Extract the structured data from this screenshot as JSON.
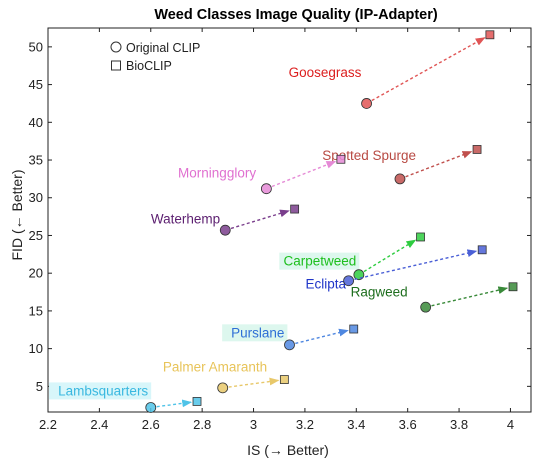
{
  "chart_data": {
    "type": "scatter",
    "title": "Weed Classes Image Quality (IP-Adapter)",
    "xlabel": "IS (→ Better)",
    "ylabel": "FID (← Better)",
    "xlim": [
      2.2,
      4.08
    ],
    "ylim": [
      1.6,
      52.5
    ],
    "x_ticks": [
      2.2,
      2.4,
      2.6,
      2.8,
      3,
      3.2,
      3.4,
      3.6,
      3.8,
      4
    ],
    "x_tick_labels": [
      "2.2",
      "2.4",
      "2.6",
      "2.8",
      "3",
      "3.2",
      "3.4",
      "3.6",
      "3.8",
      "4"
    ],
    "y_ticks": [
      5,
      10,
      15,
      20,
      25,
      30,
      35,
      40,
      45,
      50
    ],
    "y_tick_labels": [
      "5",
      "10",
      "15",
      "20",
      "25",
      "30",
      "35",
      "40",
      "45",
      "50"
    ],
    "grid": false,
    "legend": {
      "position": "top-left",
      "entries": [
        {
          "label": "Original CLIP",
          "marker": "circle"
        },
        {
          "label": "BioCLIP",
          "marker": "square"
        }
      ]
    },
    "series": [
      {
        "name": "Goosegrass",
        "color": "#e05555",
        "label_color": "#dc1e1e",
        "label_bg": "",
        "label_anchor": "end",
        "label_pos": [
          3.42,
          46.0
        ],
        "original_clip": {
          "x": 3.44,
          "y": 42.5
        },
        "bioclip": {
          "x": 3.92,
          "y": 51.6
        }
      },
      {
        "name": "Spotted Spurge",
        "color": "#c0504d",
        "label_color": "#b84a43",
        "label_bg": "",
        "label_anchor": "middle",
        "label_pos": [
          3.45,
          35.0
        ],
        "original_clip": {
          "x": 3.57,
          "y": 32.5
        },
        "bioclip": {
          "x": 3.87,
          "y": 36.4
        }
      },
      {
        "name": "Morningglory",
        "color": "#e58ad6",
        "label_color": "#e070d0",
        "label_bg": "",
        "label_anchor": "end",
        "label_pos": [
          3.01,
          32.7
        ],
        "original_clip": {
          "x": 3.05,
          "y": 31.2
        },
        "bioclip": {
          "x": 3.34,
          "y": 35.1
        }
      },
      {
        "name": "Waterhemp",
        "color": "#7a3e8c",
        "label_color": "#5c1f70",
        "label_bg": "",
        "label_anchor": "end",
        "label_pos": [
          2.87,
          26.6
        ],
        "original_clip": {
          "x": 2.89,
          "y": 25.7
        },
        "bioclip": {
          "x": 3.16,
          "y": 28.5
        }
      },
      {
        "name": "Carpetweed",
        "color": "#2ecc40",
        "label_color": "#1dbf1d",
        "label_bg": "#ddf7ee",
        "label_anchor": "end",
        "label_pos": [
          3.4,
          21.0
        ],
        "original_clip": {
          "x": 3.41,
          "y": 19.8
        },
        "bioclip": {
          "x": 3.65,
          "y": 24.8
        }
      },
      {
        "name": "Eclipta",
        "color": "#4a5fd6",
        "label_color": "#1f35c8",
        "label_bg": "",
        "label_anchor": "end",
        "label_pos": [
          3.36,
          18.0
        ],
        "original_clip": {
          "x": 3.37,
          "y": 19.0
        },
        "bioclip": {
          "x": 3.89,
          "y": 23.1
        }
      },
      {
        "name": "Ragweed",
        "color": "#3a8a3a",
        "label_color": "#1e6e1e",
        "label_bg": "",
        "label_anchor": "end",
        "label_pos": [
          3.6,
          16.9
        ],
        "original_clip": {
          "x": 3.67,
          "y": 15.5
        },
        "bioclip": {
          "x": 4.01,
          "y": 18.2
        }
      },
      {
        "name": "Purslane",
        "color": "#4f87e0",
        "label_color": "#2f6fd6",
        "label_bg": "#ddf7ee",
        "label_anchor": "end",
        "label_pos": [
          3.12,
          11.5
        ],
        "original_clip": {
          "x": 3.14,
          "y": 10.5
        },
        "bioclip": {
          "x": 3.39,
          "y": 12.6
        }
      },
      {
        "name": "Palmer Amaranth",
        "color": "#e8c86a",
        "label_color": "#e8c45a",
        "label_bg": "",
        "label_anchor": "middle",
        "label_pos": [
          2.85,
          7.0
        ],
        "original_clip": {
          "x": 2.88,
          "y": 4.8
        },
        "bioclip": {
          "x": 3.12,
          "y": 5.9
        }
      },
      {
        "name": "Lambsquarters",
        "color": "#4fc3e8",
        "label_color": "#3ab8e0",
        "label_bg": "#d8f6fa",
        "label_anchor": "end",
        "label_pos": [
          2.59,
          3.8
        ],
        "original_clip": {
          "x": 2.6,
          "y": 2.2
        },
        "bioclip": {
          "x": 2.78,
          "y": 3.0
        }
      }
    ]
  }
}
